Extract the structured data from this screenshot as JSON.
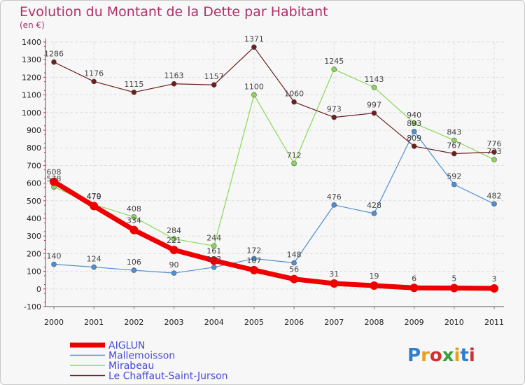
{
  "chart_data": {
    "type": "line",
    "title": "Evolution du Montant de la Dette par Habitant",
    "subtitle": "(en €)",
    "x": [
      "2000",
      "2001",
      "2002",
      "2003",
      "2004",
      "2005",
      "2006",
      "2007",
      "2008",
      "2009",
      "2010",
      "2011"
    ],
    "ylim": [
      -100,
      1400
    ],
    "yticks": [
      -100,
      0,
      100,
      200,
      300,
      400,
      500,
      600,
      700,
      800,
      900,
      1000,
      1100,
      1200,
      1300,
      1400
    ],
    "grid": true,
    "legend_position": "bottom-left",
    "series": [
      {
        "name": "AIGLUN",
        "color": "#ee0000",
        "values": [
          608,
          470,
          334,
          221,
          161,
          107,
          56,
          31,
          19,
          6,
          5,
          3
        ]
      },
      {
        "name": "Mallemoisson",
        "color": "#4f8fd0",
        "values": [
          140,
          124,
          106,
          90,
          123,
          172,
          148,
          476,
          428,
          893,
          592,
          482
        ]
      },
      {
        "name": "Mirabeau",
        "color": "#88d855",
        "values": [
          578,
          479,
          408,
          284,
          244,
          1100,
          712,
          1245,
          1143,
          940,
          843,
          733
        ]
      },
      {
        "name": "Le Chaffaut-Saint-Jurson",
        "color": "#6b1e1e",
        "values": [
          1286,
          1176,
          1115,
          1163,
          1157,
          1371,
          1060,
          973,
          997,
          809,
          767,
          776
        ]
      }
    ]
  },
  "logo": {
    "text": "Proxiti",
    "letters": [
      "P",
      "r",
      "o",
      "x",
      "i",
      "t",
      "i"
    ],
    "colors": [
      "#2e7fd0",
      "#e8a020",
      "#d03030",
      "#3aa03a",
      "#e8a020",
      "#2e7fd0",
      "#d03030"
    ]
  }
}
